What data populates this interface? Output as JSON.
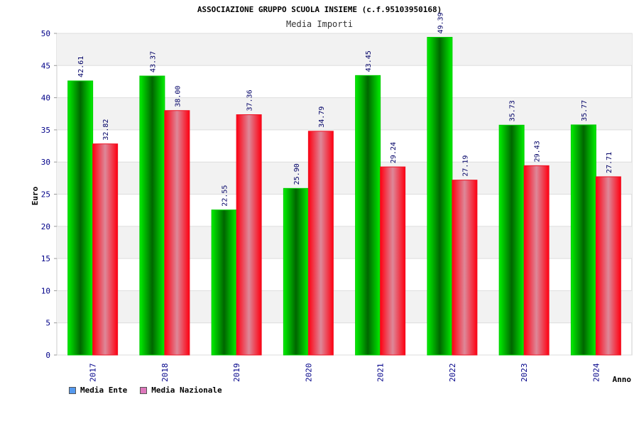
{
  "chart_data": {
    "type": "bar",
    "title": "ASSOCIAZIONE GRUPPO SCUOLA INSIEME (c.f.95103950168)",
    "subtitle": "Media Importi",
    "xlabel": "Anno",
    "ylabel": "Euro",
    "ylim": [
      0,
      50
    ],
    "yticks": [
      0,
      5,
      10,
      15,
      20,
      25,
      30,
      35,
      40,
      45,
      50
    ],
    "grid": true,
    "legend_position": "bottom-left",
    "categories": [
      "2017",
      "2018",
      "2019",
      "2020",
      "2021",
      "2022",
      "2023",
      "2024"
    ],
    "series": [
      {
        "name": "Media Ente",
        "values": [
          42.61,
          43.37,
          22.55,
          25.9,
          43.45,
          49.39,
          35.73,
          35.77
        ],
        "labels": [
          "42.61",
          "43.37",
          "22.55",
          "25.90",
          "43.45",
          "49.39",
          "35.73",
          "35.77"
        ],
        "color": "#00aa00",
        "legend_color": "#5599ee"
      },
      {
        "name": "Media Nazionale",
        "values": [
          32.82,
          38.0,
          37.36,
          34.79,
          29.24,
          27.19,
          29.43,
          27.71
        ],
        "labels": [
          "32.82",
          "38.00",
          "37.36",
          "34.79",
          "29.24",
          "27.19",
          "29.43",
          "27.71"
        ],
        "color": "#ee1122",
        "legend_color": "#dd77bb"
      }
    ]
  }
}
